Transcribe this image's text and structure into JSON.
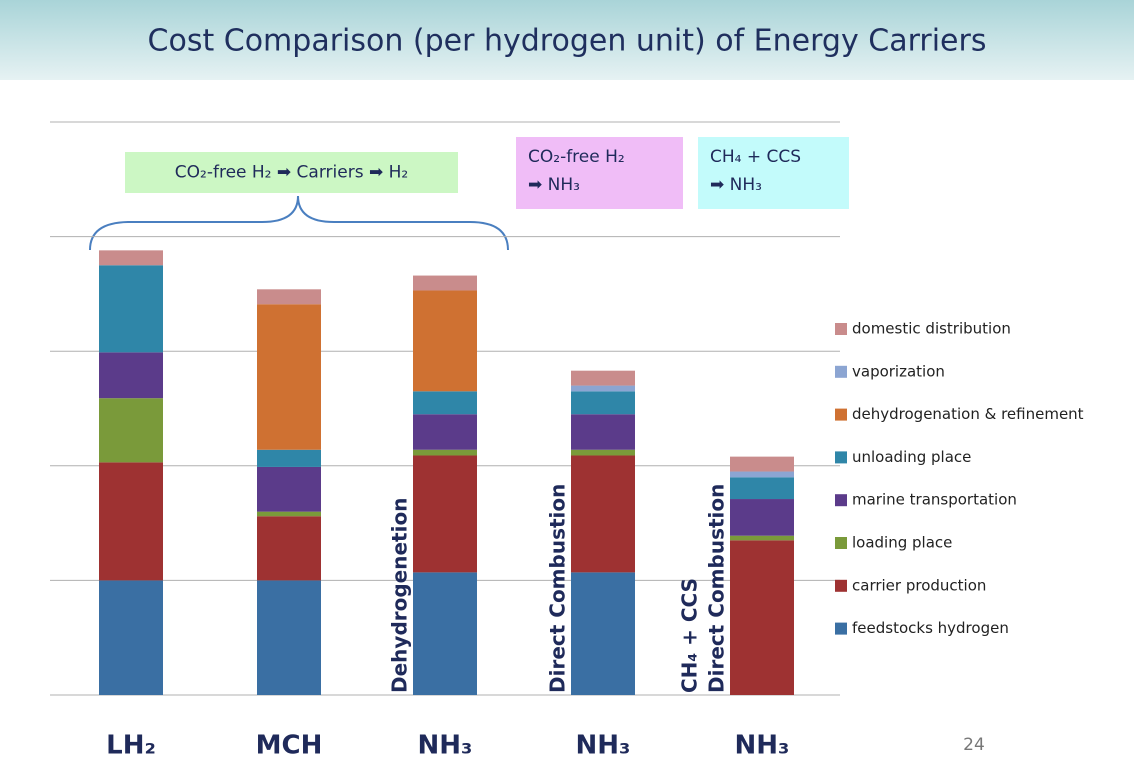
{
  "chart_data": {
    "type": "bar",
    "stacked": true,
    "title": "Cost Comparison (per hydrogen unit) of Energy Carriers",
    "categories": [
      "LH₂",
      "MCH",
      "NH₃",
      "NH₃",
      "NH₃"
    ],
    "bar_labels": [
      null,
      null,
      [
        "Dehydrogenetion"
      ],
      [
        "Direct Combustion"
      ],
      [
        "CH₄ + CCS",
        "Direct Combustion"
      ]
    ],
    "annotations": [
      {
        "lines": [
          "CO₂-free H₂ ➡ Carriers ➡ H₂"
        ],
        "color": "#ccf7c4"
      },
      {
        "lines": [
          "CO₂-free H₂",
          "➡ NH₃"
        ],
        "color": "#f0bdf7"
      },
      {
        "lines": [
          "CH₄ + CCS",
          "➡ NH₃"
        ],
        "color": "#c3fbfb"
      }
    ],
    "series": [
      {
        "name": "feedstocks hydrogen",
        "color": "#3a6fa3",
        "values": [
          1.0,
          1.0,
          1.07,
          1.07,
          0
        ]
      },
      {
        "name": "carrier production",
        "color": "#9e3232",
        "values": [
          1.03,
          0.56,
          1.02,
          1.02,
          1.35
        ]
      },
      {
        "name": "loading place",
        "color": "#7a9a3a",
        "values": [
          0.56,
          0.04,
          0.05,
          0.05,
          0.04
        ]
      },
      {
        "name": "marine transportation",
        "color": "#5b3b8a",
        "values": [
          0.4,
          0.39,
          0.31,
          0.31,
          0.32
        ]
      },
      {
        "name": "unloading place",
        "color": "#2f86a8",
        "values": [
          0.76,
          0.15,
          0.2,
          0.2,
          0.19
        ]
      },
      {
        "name": "dehydrogenation & refinement",
        "color": "#cf7132",
        "values": [
          0,
          1.27,
          0.88,
          0,
          0
        ]
      },
      {
        "name": "vaporization",
        "color": "#8ca5d2",
        "values": [
          0,
          0,
          0,
          0.05,
          0.05
        ]
      },
      {
        "name": "domestic distribution",
        "color": "#c98c8c",
        "values": [
          0.13,
          0.13,
          0.13,
          0.13,
          0.13
        ]
      }
    ],
    "ylim": [
      0,
      5
    ],
    "yticks": [
      0,
      1,
      2,
      3,
      4,
      5
    ],
    "grid": true,
    "legend": "right",
    "page_number": "24"
  }
}
